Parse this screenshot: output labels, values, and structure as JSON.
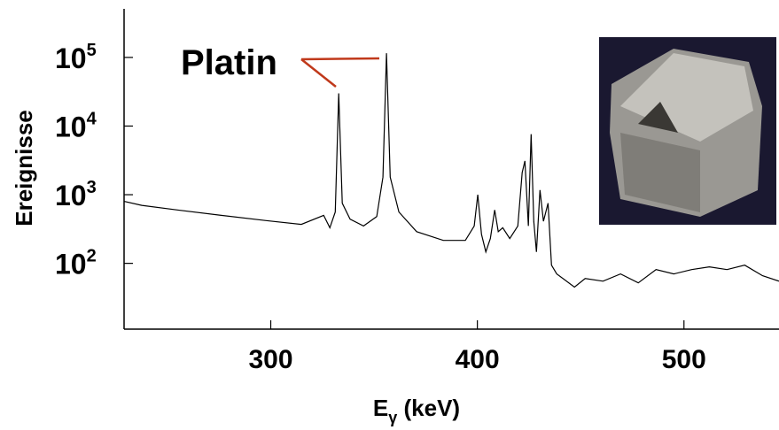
{
  "chart_data": {
    "type": "line",
    "x_label": "E_γ (keV)",
    "y_label": "Ereignisse",
    "annotation": "Platin",
    "x": [
      229,
      237.6,
      254.8,
      276,
      297.7,
      314.8,
      325.6,
      328.6,
      331.2,
      332.9,
      334.6,
      338.4,
      344.9,
      351.3,
      354.3,
      356,
      357.8,
      362,
      370.6,
      383.5,
      394.2,
      398.5,
      400.2,
      402,
      404.1,
      406.3,
      408.4,
      410.1,
      412.3,
      415.7,
      419.6,
      421.7,
      423,
      424.7,
      426,
      427.3,
      428.6,
      430.3,
      432,
      434.2,
      435.9,
      438.4,
      447,
      452.2,
      460.8,
      469.3,
      477.9,
      486.5,
      495.1,
      503.7,
      512.3,
      520.8,
      529.4,
      538,
      546
    ],
    "series": [
      {
        "color": "#000000",
        "values": [
          800,
          700,
          600,
          500,
          420,
          370,
          500,
          330,
          560,
          30000,
          750,
          440,
          350,
          480,
          1800,
          115000,
          1800,
          560,
          290,
          216,
          216,
          350,
          1000,
          265,
          147,
          230,
          600,
          290,
          330,
          230,
          350,
          2100,
          3100,
          350,
          7600,
          410,
          147,
          1170,
          410,
          750,
          94,
          70,
          45,
          60,
          55,
          70,
          52,
          81,
          70,
          81,
          89,
          81,
          94,
          66,
          55
        ]
      }
    ],
    "xlim": [
      229,
      546
    ],
    "xticks": [
      300,
      400,
      500
    ],
    "ylim": [
      11,
      510000
    ],
    "log_y": true,
    "yticks": [
      {
        "value": 100,
        "label": "10^2"
      },
      {
        "value": 1000,
        "label": "10^3"
      },
      {
        "value": 10000,
        "label": "10^4"
      },
      {
        "value": 100000,
        "label": "10^5"
      }
    ]
  }
}
